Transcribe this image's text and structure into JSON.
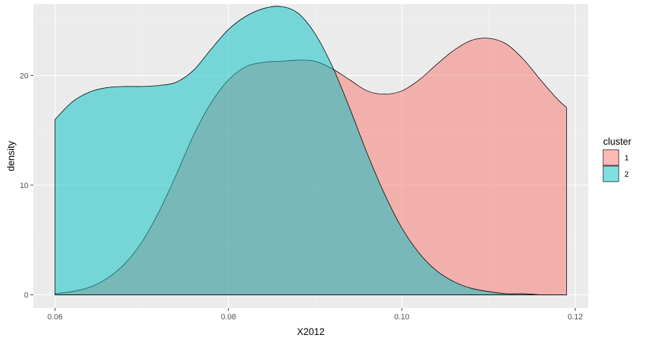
{
  "chart_data": {
    "type": "area",
    "subtype": "density",
    "title": "",
    "xlabel": "X2012",
    "ylabel": "density",
    "xlim": [
      0.0575,
      0.1215
    ],
    "ylim": [
      -1.2,
      26.5
    ],
    "x_ticks": [
      0.06,
      0.08,
      0.1,
      0.12
    ],
    "x_tick_labels": [
      "0.06",
      "0.08",
      "0.10",
      "0.12"
    ],
    "y_ticks": [
      0,
      10,
      20
    ],
    "y_tick_labels": [
      "0",
      "10",
      "20"
    ],
    "grid": true,
    "legend": {
      "title": "cluster",
      "position": "right"
    },
    "series": [
      {
        "name": "1",
        "color": "#F8766D",
        "fill_opacity": 0.5,
        "x": [
          0.06,
          0.062,
          0.064,
          0.066,
          0.068,
          0.07,
          0.072,
          0.074,
          0.076,
          0.078,
          0.08,
          0.082,
          0.084,
          0.086,
          0.088,
          0.09,
          0.092,
          0.094,
          0.096,
          0.098,
          0.1,
          0.102,
          0.104,
          0.106,
          0.108,
          0.11,
          0.112,
          0.114,
          0.116,
          0.118,
          0.119
        ],
        "values": [
          0.1,
          0.3,
          0.7,
          1.5,
          2.8,
          4.8,
          7.6,
          11.0,
          14.6,
          17.5,
          19.6,
          20.8,
          21.2,
          21.3,
          21.4,
          21.3,
          20.6,
          19.6,
          18.6,
          18.3,
          18.6,
          19.6,
          21.0,
          22.3,
          23.2,
          23.4,
          22.9,
          21.5,
          19.6,
          17.8,
          17.1
        ]
      },
      {
        "name": "2",
        "color": "#00BFC4",
        "fill_opacity": 0.5,
        "x": [
          0.06,
          0.062,
          0.064,
          0.066,
          0.068,
          0.07,
          0.072,
          0.074,
          0.076,
          0.078,
          0.08,
          0.082,
          0.084,
          0.086,
          0.088,
          0.09,
          0.092,
          0.094,
          0.096,
          0.098,
          0.1,
          0.102,
          0.104,
          0.106,
          0.108,
          0.11,
          0.112,
          0.114,
          0.116,
          0.118,
          0.119
        ],
        "values": [
          16.0,
          17.6,
          18.5,
          18.9,
          19.0,
          19.0,
          19.1,
          19.4,
          20.5,
          22.4,
          24.2,
          25.4,
          26.1,
          26.3,
          25.7,
          23.8,
          20.8,
          17.0,
          12.9,
          9.2,
          6.1,
          3.8,
          2.2,
          1.2,
          0.6,
          0.3,
          0.1,
          0.1,
          0.0,
          0.0,
          0.0
        ]
      }
    ]
  }
}
